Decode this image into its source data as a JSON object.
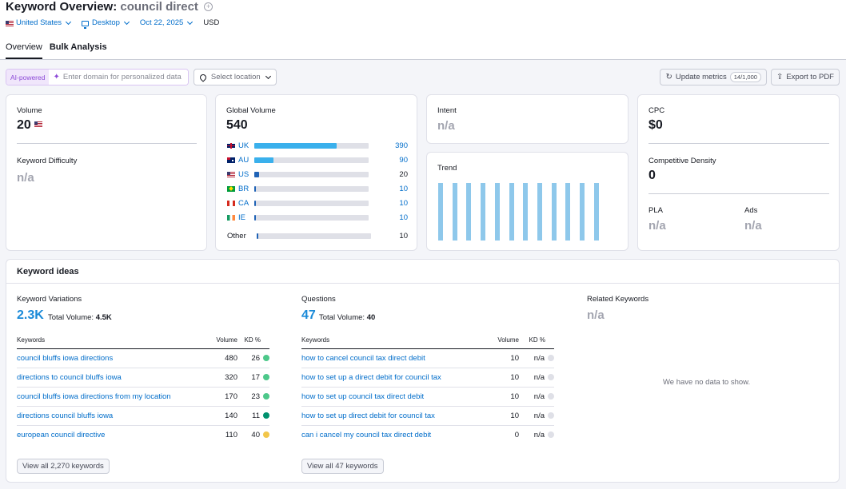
{
  "header": {
    "title_prefix": "Keyword Overview:",
    "keyword": "council direct",
    "add_icon": "plus-circle-icon"
  },
  "filters": {
    "country": "United States",
    "device": "Desktop",
    "date": "Oct 22, 2025",
    "currency": "USD"
  },
  "tabs": [
    {
      "label": "Overview",
      "active": true
    },
    {
      "label": "Bulk Analysis",
      "active": false
    }
  ],
  "toolbar": {
    "ai_badge": "AI-powered",
    "domain_placeholder": "Enter domain for personalized data",
    "location_placeholder": "Select location",
    "update_label": "Update metrics",
    "update_count": "14/1,000",
    "export_label": "Export to PDF"
  },
  "volume": {
    "label": "Volume",
    "value": "20",
    "kd_label": "Keyword Difficulty",
    "kd_value": "n/a"
  },
  "global_volume": {
    "label": "Global Volume",
    "value": "540",
    "rows": [
      {
        "code": "UK",
        "value": "390",
        "fraction": 0.72,
        "link": true
      },
      {
        "code": "AU",
        "value": "90",
        "fraction": 0.17,
        "link": true
      },
      {
        "code": "US",
        "value": "20",
        "fraction": 0.04,
        "link": false
      },
      {
        "code": "BR",
        "value": "10",
        "fraction": 0.015,
        "link": true
      },
      {
        "code": "CA",
        "value": "10",
        "fraction": 0.015,
        "link": true
      },
      {
        "code": "IE",
        "value": "10",
        "fraction": 0.015,
        "link": true
      }
    ],
    "other": {
      "label": "Other",
      "value": "10",
      "fraction": 0.015
    }
  },
  "intent": {
    "label": "Intent",
    "value": "n/a"
  },
  "trend": {
    "label": "Trend",
    "values": [
      1,
      1,
      1,
      1,
      1,
      1,
      1,
      1,
      1,
      1,
      1,
      1
    ]
  },
  "cpc": {
    "label": "CPC",
    "value": "$0",
    "cd_label": "Competitive Density",
    "cd_value": "0",
    "pla_label": "PLA",
    "pla_value": "n/a",
    "ads_label": "Ads",
    "ads_value": "n/a"
  },
  "ideas": {
    "title": "Keyword ideas",
    "variations": {
      "label": "Keyword Variations",
      "count": "2.3K",
      "total_label": "Total Volume:",
      "total_value": "4.5K",
      "headers": {
        "kw": "Keywords",
        "vol": "Volume",
        "kd": "KD %"
      },
      "rows": [
        {
          "kw": "council bluffs iowa directions",
          "vol": "480",
          "kd": "26",
          "color": "#4dc88a"
        },
        {
          "kw": "directions to council bluffs iowa",
          "vol": "320",
          "kd": "17",
          "color": "#4dc88a"
        },
        {
          "kw": "council bluffs iowa directions from my location",
          "vol": "170",
          "kd": "23",
          "color": "#4dc88a"
        },
        {
          "kw": "directions council bluffs iowa",
          "vol": "140",
          "kd": "11",
          "color": "#00916e"
        },
        {
          "kw": "european council directive",
          "vol": "110",
          "kd": "40",
          "color": "#f2c64a"
        }
      ],
      "view_all": "View all 2,270 keywords"
    },
    "questions": {
      "label": "Questions",
      "count": "47",
      "total_label": "Total Volume:",
      "total_value": "40",
      "headers": {
        "kw": "Keywords",
        "vol": "Volume",
        "kd": "KD %"
      },
      "rows": [
        {
          "kw": "how to cancel council tax direct debit",
          "vol": "10",
          "kd": "n/a",
          "color": "#dfe0e7"
        },
        {
          "kw": "how to set up a direct debit for council tax",
          "vol": "10",
          "kd": "n/a",
          "color": "#dfe0e7"
        },
        {
          "kw": "how to set up council tax direct debit",
          "vol": "10",
          "kd": "n/a",
          "color": "#dfe0e7"
        },
        {
          "kw": "how to set up direct debit for council tax",
          "vol": "10",
          "kd": "n/a",
          "color": "#dfe0e7"
        },
        {
          "kw": "can i cancel my council tax direct debit",
          "vol": "0",
          "kd": "n/a",
          "color": "#dfe0e7"
        }
      ],
      "view_all": "View all 47 keywords"
    },
    "related": {
      "label": "Related Keywords",
      "value": "n/a",
      "empty": "We have no data to show."
    }
  }
}
